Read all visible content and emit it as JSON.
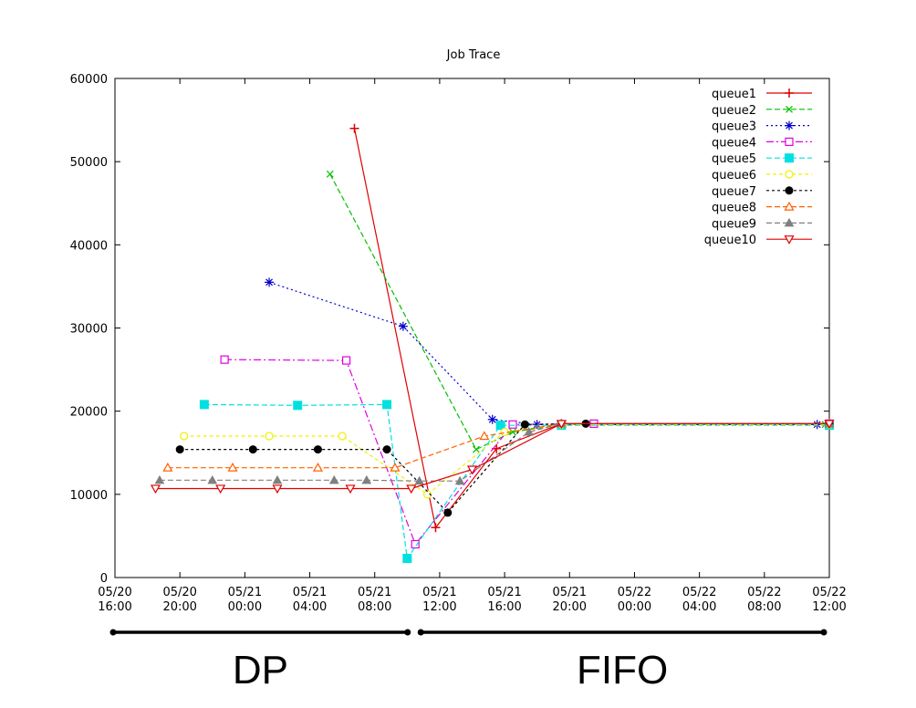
{
  "chart_data": {
    "type": "line",
    "title": "Job Trace",
    "xlabel": "",
    "ylabel": "",
    "x_axis": {
      "type": "date",
      "range": [
        "2009-05-20T16:00",
        "2009-05-22T12:00"
      ],
      "ticks": [
        {
          "value": "2009-05-20T16:00",
          "label": [
            "05/20",
            "16:00"
          ]
        },
        {
          "value": "2009-05-20T20:00",
          "label": [
            "05/20",
            "20:00"
          ]
        },
        {
          "value": "2009-05-21T00:00",
          "label": [
            "05/21",
            "00:00"
          ]
        },
        {
          "value": "2009-05-21T04:00",
          "label": [
            "05/21",
            "04:00"
          ]
        },
        {
          "value": "2009-05-21T08:00",
          "label": [
            "05/21",
            "08:00"
          ]
        },
        {
          "value": "2009-05-21T12:00",
          "label": [
            "05/21",
            "12:00"
          ]
        },
        {
          "value": "2009-05-21T16:00",
          "label": [
            "05/21",
            "16:00"
          ]
        },
        {
          "value": "2009-05-21T20:00",
          "label": [
            "05/21",
            "20:00"
          ]
        },
        {
          "value": "2009-05-22T00:00",
          "label": [
            "05/22",
            "00:00"
          ]
        },
        {
          "value": "2009-05-22T04:00",
          "label": [
            "05/22",
            "04:00"
          ]
        },
        {
          "value": "2009-05-22T08:00",
          "label": [
            "05/22",
            "08:00"
          ]
        },
        {
          "value": "2009-05-22T12:00",
          "label": [
            "05/22",
            "12:00"
          ]
        }
      ]
    },
    "y_axis": {
      "range": [
        0,
        60000
      ],
      "ticks": [
        0,
        10000,
        20000,
        30000,
        40000,
        50000,
        60000
      ]
    },
    "grid": false,
    "legend_position": "top-right",
    "series": [
      {
        "name": "queue1",
        "color": "#e00000",
        "dash": "",
        "marker": "plus",
        "points": [
          [
            "2009-05-21T06:45",
            54000
          ],
          [
            "2009-05-21T11:45",
            6000
          ],
          [
            "2009-05-21T15:30",
            15500
          ],
          [
            "2009-05-21T19:30",
            18500
          ],
          [
            "2009-05-22T12:00",
            18500
          ]
        ]
      },
      {
        "name": "queue2",
        "color": "#00c000",
        "dash": "6,3",
        "marker": "cross",
        "points": [
          [
            "2009-05-21T05:15",
            48500
          ],
          [
            "2009-05-21T14:15",
            15400
          ],
          [
            "2009-05-21T16:30",
            17500
          ],
          [
            "2009-05-21T19:30",
            18400
          ],
          [
            "2009-05-22T11:45",
            18400
          ]
        ]
      },
      {
        "name": "queue3",
        "color": "#0000cc",
        "dash": "2,3",
        "marker": "star",
        "points": [
          [
            "2009-05-21T01:30",
            35500
          ],
          [
            "2009-05-21T09:45",
            30200
          ],
          [
            "2009-05-21T15:15",
            19000
          ],
          [
            "2009-05-21T18:00",
            18400
          ],
          [
            "2009-05-22T11:15",
            18400
          ]
        ]
      },
      {
        "name": "queue4",
        "color": "#e000e0",
        "dash": "8,3,2,3",
        "marker": "box",
        "points": [
          [
            "2009-05-20T22:45",
            26200
          ],
          [
            "2009-05-21T06:15",
            26100
          ],
          [
            "2009-05-21T10:30",
            4000
          ],
          [
            "2009-05-21T16:30",
            18400
          ],
          [
            "2009-05-21T21:30",
            18500
          ],
          [
            "2009-05-22T12:00",
            18500
          ]
        ]
      },
      {
        "name": "queue5",
        "color": "#00e0e0",
        "dash": "6,3",
        "marker": "fbox",
        "points": [
          [
            "2009-05-20T21:30",
            20800
          ],
          [
            "2009-05-21T03:15",
            20700
          ],
          [
            "2009-05-21T08:45",
            20800
          ],
          [
            "2009-05-21T10:00",
            2300
          ],
          [
            "2009-05-21T15:45",
            18300
          ],
          [
            "2009-05-21T19:30",
            18300
          ],
          [
            "2009-05-22T12:00",
            18300
          ]
        ]
      },
      {
        "name": "queue6",
        "color": "#f0f000",
        "dash": "4,3",
        "marker": "circle",
        "points": [
          [
            "2009-05-20T20:15",
            17000
          ],
          [
            "2009-05-21T01:30",
            17000
          ],
          [
            "2009-05-21T06:00",
            17000
          ],
          [
            "2009-05-21T11:15",
            10000
          ],
          [
            "2009-05-21T16:00",
            17500
          ],
          [
            "2009-05-21T19:30",
            18400
          ],
          [
            "2009-05-22T12:00",
            18400
          ]
        ]
      },
      {
        "name": "queue7",
        "color": "#000000",
        "dash": "3,3",
        "marker": "fcircle",
        "points": [
          [
            "2009-05-20T20:00",
            15400
          ],
          [
            "2009-05-21T00:30",
            15400
          ],
          [
            "2009-05-21T04:30",
            15400
          ],
          [
            "2009-05-21T08:45",
            15400
          ],
          [
            "2009-05-21T12:30",
            7800
          ],
          [
            "2009-05-21T17:15",
            18400
          ],
          [
            "2009-05-21T21:00",
            18500
          ],
          [
            "2009-05-22T12:00",
            18500
          ]
        ]
      },
      {
        "name": "queue8",
        "color": "#ff6000",
        "dash": "6,3",
        "marker": "triangle",
        "points": [
          [
            "2009-05-20T19:15",
            13200
          ],
          [
            "2009-05-20T23:15",
            13200
          ],
          [
            "2009-05-21T04:30",
            13200
          ],
          [
            "2009-05-21T09:15",
            13200
          ],
          [
            "2009-05-21T14:45",
            17000
          ],
          [
            "2009-05-21T19:30",
            18500
          ],
          [
            "2009-05-22T12:00",
            18500
          ]
        ]
      },
      {
        "name": "queue9",
        "color": "#808080",
        "dash": "6,3",
        "marker": "ftriangle",
        "points": [
          [
            "2009-05-20T18:45",
            11700
          ],
          [
            "2009-05-20T22:00",
            11700
          ],
          [
            "2009-05-21T02:00",
            11700
          ],
          [
            "2009-05-21T05:30",
            11700
          ],
          [
            "2009-05-21T07:30",
            11700
          ],
          [
            "2009-05-21T10:45",
            11600
          ],
          [
            "2009-05-21T13:15",
            11600
          ],
          [
            "2009-05-21T17:30",
            17500
          ],
          [
            "2009-05-21T19:30",
            18500
          ],
          [
            "2009-05-22T12:00",
            18500
          ]
        ]
      },
      {
        "name": "queue10",
        "color": "#e00000",
        "dash": "",
        "marker": "itriangle",
        "points": [
          [
            "2009-05-20T18:30",
            10700
          ],
          [
            "2009-05-20T22:30",
            10700
          ],
          [
            "2009-05-21T02:00",
            10700
          ],
          [
            "2009-05-21T06:30",
            10700
          ],
          [
            "2009-05-21T10:15",
            10700
          ],
          [
            "2009-05-21T14:00",
            13000
          ],
          [
            "2009-05-21T19:30",
            18500
          ],
          [
            "2009-05-22T12:00",
            18500
          ]
        ]
      }
    ],
    "annotations": [
      {
        "text": "DP",
        "span": [
          "2009-05-20T16:00",
          "2009-05-21T10:15"
        ]
      },
      {
        "text": "FIFO",
        "span": [
          "2009-05-21T10:30",
          "2009-05-22T12:00"
        ]
      }
    ]
  }
}
